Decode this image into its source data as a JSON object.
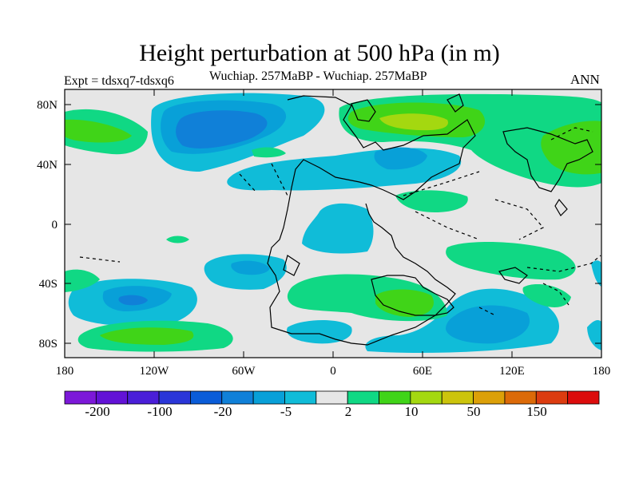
{
  "title": "Height perturbation at 500 hPa (in m)",
  "experiment": "Expt = tdsxq7-tdsxq6",
  "subtitle": "Wuchiap. 257MaBP - Wuchiap. 257MaBP",
  "season": "ANN",
  "lat_ticks": [
    "80N",
    "40N",
    "0",
    "40S",
    "80S"
  ],
  "lon_ticks": [
    "180",
    "120W",
    "60W",
    "0",
    "60E",
    "120E",
    "180"
  ],
  "colorbar": {
    "colors": [
      "#7c18d8",
      "#6212d6",
      "#4a1ed8",
      "#2a36d8",
      "#0a5cd8",
      "#1080d8",
      "#08a0d8",
      "#10bcd8",
      "#e6e6e6",
      "#10d884",
      "#40d418",
      "#a4d810",
      "#ccc40c",
      "#dca008",
      "#dc6a08",
      "#dc3c10",
      "#dc0c0c"
    ],
    "labels": [
      "-200",
      "-100",
      "-20",
      "-5",
      "2",
      "10",
      "50",
      "150"
    ]
  },
  "field_colors": {
    "background": "#e6e6e6",
    "light_blue": "#10bcd8",
    "mid_blue": "#08a0d8",
    "deep_blue": "#1080d8",
    "light_green": "#10d884",
    "green": "#40d418",
    "yellow_green": "#a4d810"
  }
}
